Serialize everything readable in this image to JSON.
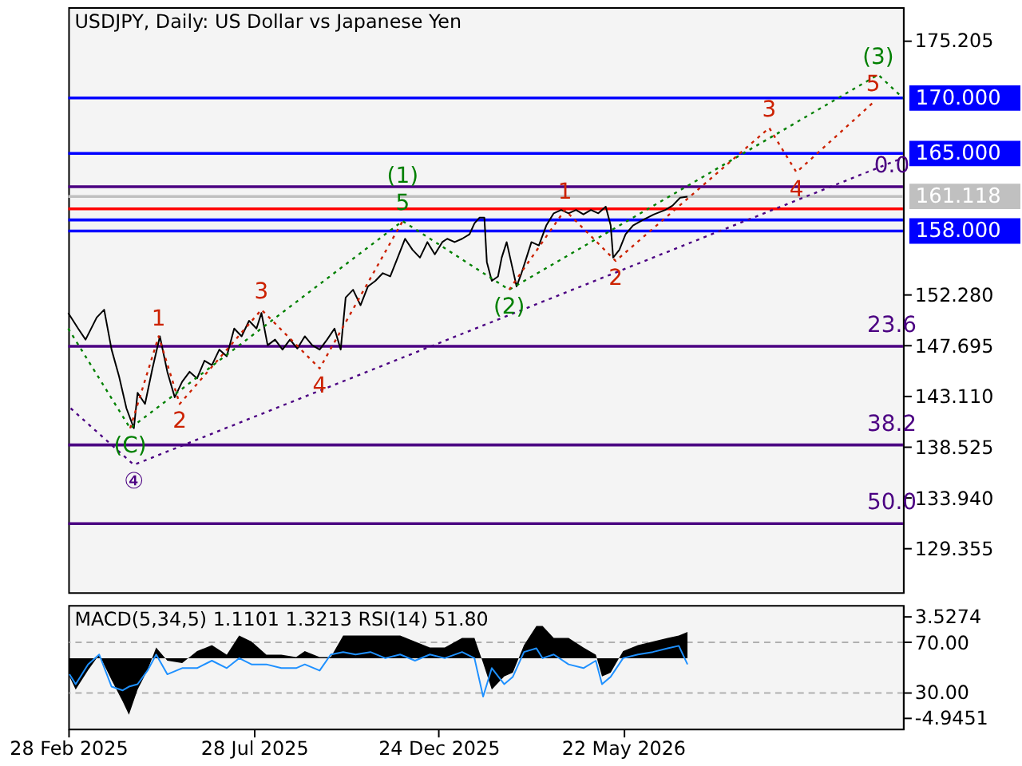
{
  "chart_data": [
    {
      "type": "line",
      "title": "USDJPY, Daily:  US Dollar vs Japanese Yen",
      "xlim": [
        "2025-02-28",
        "2027-01-03"
      ],
      "ylim": [
        125.4,
        178.2
      ],
      "yticks": [
        {
          "value": 175.205,
          "label": "175.205"
        },
        {
          "value": 152.28,
          "label": "152.280"
        },
        {
          "value": 147.695,
          "label": "147.695"
        },
        {
          "value": 143.11,
          "label": "143.110"
        },
        {
          "value": 138.525,
          "label": "138.525"
        },
        {
          "value": 133.94,
          "label": "133.940"
        },
        {
          "value": 129.355,
          "label": "129.355"
        }
      ],
      "tick_labels": "y",
      "grid": false,
      "series": [
        {
          "color": "#000000",
          "line_style": "solid",
          "x": [
            "2025-02-28",
            "2025-03-08",
            "2025-03-14",
            "2025-03-23",
            "2025-03-29",
            "2025-04-04",
            "2025-04-10",
            "2025-04-16",
            "2025-04-22",
            "2025-04-25",
            "2025-05-01",
            "2025-05-07",
            "2025-05-13",
            "2025-05-19",
            "2025-05-25",
            "2025-05-31",
            "2025-06-06",
            "2025-06-12",
            "2025-06-18",
            "2025-06-24",
            "2025-06-30",
            "2025-07-06",
            "2025-07-12",
            "2025-07-18",
            "2025-07-24",
            "2025-07-30",
            "2025-08-03",
            "2025-08-08",
            "2025-08-14",
            "2025-08-20",
            "2025-08-26",
            "2025-09-01",
            "2025-09-07",
            "2025-09-13",
            "2025-09-19",
            "2025-09-25",
            "2025-10-01",
            "2025-10-06",
            "2025-10-10",
            "2025-10-16",
            "2025-10-22",
            "2025-10-28",
            "2025-11-03",
            "2025-11-09",
            "2025-11-15",
            "2025-11-21",
            "2025-11-27",
            "2025-12-03",
            "2025-12-09",
            "2025-12-15",
            "2025-12-21",
            "2025-12-27",
            "2025-12-31",
            "2026-01-06",
            "2026-01-12",
            "2026-01-18",
            "2026-01-22",
            "2026-01-26",
            "2026-01-30",
            "2026-02-01",
            "2026-02-05",
            "2026-02-10",
            "2026-02-13",
            "2026-02-17",
            "2026-02-22",
            "2026-02-25",
            "2026-03-01",
            "2026-03-05",
            "2026-03-09",
            "2026-03-15",
            "2026-03-21",
            "2026-03-27",
            "2026-04-02",
            "2026-04-08",
            "2026-04-14",
            "2026-04-20",
            "2026-04-26",
            "2026-05-02",
            "2026-05-08",
            "2026-05-12",
            "2026-05-14",
            "2026-05-19",
            "2026-05-24",
            "2026-05-30",
            "2026-06-07",
            "2026-06-16",
            "2026-06-25",
            "2026-07-01",
            "2026-07-07",
            "2026-07-13"
          ],
          "values": [
            150.6,
            149.2,
            148.2,
            150.2,
            150.9,
            147.3,
            144.9,
            142.0,
            140.2,
            143.4,
            142.4,
            145.6,
            148.5,
            145.3,
            143.0,
            144.4,
            145.3,
            144.7,
            146.3,
            145.9,
            147.3,
            146.7,
            149.2,
            148.5,
            149.9,
            149.2,
            150.6,
            147.7,
            148.2,
            147.3,
            148.2,
            147.4,
            148.5,
            147.7,
            147.3,
            148.2,
            149.2,
            147.3,
            152.0,
            152.7,
            151.3,
            153.0,
            153.5,
            154.2,
            153.9,
            155.6,
            157.3,
            156.3,
            155.6,
            157.0,
            155.9,
            157.0,
            157.3,
            157.0,
            157.3,
            157.7,
            158.7,
            159.2,
            159.2,
            155.2,
            153.5,
            153.9,
            155.6,
            157.0,
            154.5,
            153.0,
            154.2,
            155.6,
            157.0,
            156.7,
            158.5,
            159.6,
            159.9,
            159.6,
            159.9,
            159.5,
            159.9,
            159.6,
            160.2,
            158.5,
            155.6,
            156.3,
            157.7,
            158.5,
            159.0,
            159.5,
            159.9,
            160.3,
            161.0,
            161.1
          ]
        },
        {
          "color": "#008000",
          "line_style": "dotted",
          "x": [
            "2025-02-28",
            "2025-04-19",
            "2025-11-25",
            "2026-02-19",
            "2026-12-14",
            "2027-01-03"
          ],
          "values": [
            149.2,
            140.2,
            158.9,
            152.7,
            172.1,
            170.0
          ]
        },
        {
          "color": "#cc2200",
          "line_style": "dotted",
          "x": [
            "2025-04-19",
            "2025-05-12",
            "2025-05-29",
            "2025-08-03",
            "2025-09-19",
            "2025-11-25"
          ],
          "values": [
            140.2,
            148.5,
            142.4,
            150.9,
            145.6,
            158.9
          ]
        },
        {
          "color": "#cc2200",
          "line_style": "dotted",
          "x": [
            "2026-02-19",
            "2026-04-05",
            "2026-05-16",
            "2026-09-17",
            "2026-10-09",
            "2026-12-10"
          ],
          "values": [
            152.7,
            159.9,
            155.3,
            167.3,
            163.3,
            169.6
          ]
        },
        {
          "color": "#4b0082",
          "line_style": "dotted",
          "x": [
            "2025-03-02",
            "2025-04-22",
            "2027-01-03"
          ],
          "values": [
            142.0,
            136.9,
            164.6
          ]
        }
      ],
      "ref_lines": [
        {
          "axis": "y",
          "value": 170.0,
          "label": "170.000",
          "color": "#0000ff"
        },
        {
          "axis": "y",
          "value": 165.0,
          "label": "165.000",
          "color": "#0000ff"
        },
        {
          "axis": "y",
          "value": 162.0,
          "color": "#4b0082"
        },
        {
          "axis": "y",
          "value": 161.118,
          "label": "161.118",
          "color": "#c0c0c0"
        },
        {
          "axis": "y",
          "value": 160.0,
          "color": "#ff0000"
        },
        {
          "axis": "y",
          "value": 159.0,
          "color": "#0000ff"
        },
        {
          "axis": "y",
          "value": 158.0,
          "label": "158.000",
          "color": "#0000ff"
        },
        {
          "axis": "y",
          "value": 147.6,
          "color": "#4b0082"
        },
        {
          "axis": "y",
          "value": 138.7,
          "color": "#4b0082"
        },
        {
          "axis": "y",
          "value": 131.6,
          "color": "#4b0082"
        }
      ],
      "annotations": [
        {
          "text": "(C)",
          "x": "2025-04-19",
          "y": 140.2
        },
        {
          "text": "④",
          "x": "2025-04-22",
          "y": 136.9
        },
        {
          "text": "1",
          "x": "2025-05-12",
          "y": 148.5
        },
        {
          "text": "2",
          "x": "2025-05-29",
          "y": 142.4
        },
        {
          "text": "3",
          "x": "2025-08-03",
          "y": 150.9
        },
        {
          "text": "4",
          "x": "2025-09-19",
          "y": 145.6
        },
        {
          "text": "5",
          "x": "2025-11-25",
          "y": 158.9
        },
        {
          "text": "(1)",
          "x": "2025-11-25",
          "y": 158.9
        },
        {
          "text": "(2)",
          "x": "2026-02-19",
          "y": 152.7
        },
        {
          "text": "1",
          "x": "2026-04-05",
          "y": 159.9
        },
        {
          "text": "2",
          "x": "2026-05-16",
          "y": 155.3
        },
        {
          "text": "3",
          "x": "2026-09-17",
          "y": 167.3
        },
        {
          "text": "4",
          "x": "2026-10-09",
          "y": 163.3
        },
        {
          "text": "5",
          "x": "2026-12-10",
          "y": 169.6
        },
        {
          "text": "(3)",
          "x": "2026-12-14",
          "y": 172.1
        },
        {
          "text": "0.0",
          "x": "2026-12-25",
          "y": 162.0
        },
        {
          "text": "23.6",
          "x": "2026-12-25",
          "y": 147.6
        },
        {
          "text": "38.2",
          "x": "2026-12-25",
          "y": 138.7
        },
        {
          "text": "50.0",
          "x": "2026-12-25",
          "y": 131.6
        }
      ]
    },
    {
      "type": "line",
      "title": "MACD(5,34,5) 1.1101 1.3213 RSI(14) 51.80",
      "xlim": [
        "2025-02-28",
        "2027-01-03"
      ],
      "xticks": [
        {
          "value": "2025-02-28",
          "label": "28 Feb 2025"
        },
        {
          "value": "2025-07-28",
          "label": "28 Jul 2025"
        },
        {
          "value": "2025-12-24",
          "label": "24 Dec 2025"
        },
        {
          "value": "2026-05-22",
          "label": "22 May 2026"
        }
      ],
      "ylim": [
        0,
        100
      ],
      "yticks": [
        {
          "value": 70,
          "label": "70.00"
        },
        {
          "value": 30,
          "label": "30.00"
        }
      ],
      "y2lim": [
        -5.87,
        4.45
      ],
      "y2ticks": [
        3.5274,
        -4.9451
      ],
      "grid": "y",
      "x": [
        "2025-03-01",
        "2025-03-06",
        "2025-03-16",
        "2025-03-25",
        "2025-04-04",
        "2025-04-13",
        "2025-04-18",
        "2025-04-25",
        "2025-05-03",
        "2025-05-10",
        "2025-05-19",
        "2025-05-31",
        "2025-06-12",
        "2025-06-24",
        "2025-07-06",
        "2025-07-16",
        "2025-07-26",
        "2025-08-07",
        "2025-08-19",
        "2025-08-31",
        "2025-09-07",
        "2025-09-19",
        "2025-09-28",
        "2025-10-08",
        "2025-10-18",
        "2025-10-30",
        "2025-11-11",
        "2025-11-23",
        "2025-12-05",
        "2025-12-17",
        "2025-12-29",
        "2026-01-12",
        "2026-01-22",
        "2026-01-29",
        "2026-02-05",
        "2026-02-15",
        "2026-02-22",
        "2026-03-03",
        "2026-03-13",
        "2026-03-18",
        "2026-03-27",
        "2026-04-08",
        "2026-04-20",
        "2026-04-30",
        "2026-05-05",
        "2026-05-12",
        "2026-05-22",
        "2026-06-03",
        "2026-06-15",
        "2026-06-27",
        "2026-07-06",
        "2026-07-13"
      ],
      "series": [
        {
          "type": "area",
          "axis": "y2",
          "color": "#000000",
          "values": [
            -1.5,
            -2.6,
            -1.0,
            0.3,
            -1.8,
            -3.6,
            -4.7,
            -2.6,
            -1.0,
            0.9,
            -0.2,
            -0.4,
            0.6,
            1.1,
            0.3,
            1.9,
            1.4,
            0.3,
            0.3,
            0.1,
            0.6,
            0.1,
            0.1,
            1.9,
            1.9,
            1.9,
            1.9,
            1.9,
            1.4,
            0.9,
            0.9,
            1.7,
            1.7,
            -0.4,
            -2.6,
            -1.5,
            -1.2,
            1.1,
            2.7,
            2.7,
            1.7,
            1.7,
            0.9,
            0.3,
            -1.5,
            -1.2,
            0.6,
            1.1,
            1.4,
            1.7,
            1.9,
            2.2
          ]
        },
        {
          "type": "line",
          "axis": "y",
          "color": "#1e90ff",
          "values": [
            44,
            36,
            52,
            60,
            34,
            31,
            34,
            36,
            47,
            60,
            44,
            49,
            49,
            55,
            49,
            57,
            52,
            52,
            49,
            49,
            52,
            47,
            60,
            62,
            60,
            62,
            57,
            60,
            55,
            60,
            57,
            62,
            57,
            26,
            49,
            36,
            42,
            62,
            65,
            57,
            60,
            52,
            49,
            55,
            36,
            42,
            57,
            60,
            62,
            65,
            67,
            52
          ]
        }
      ]
    }
  ]
}
